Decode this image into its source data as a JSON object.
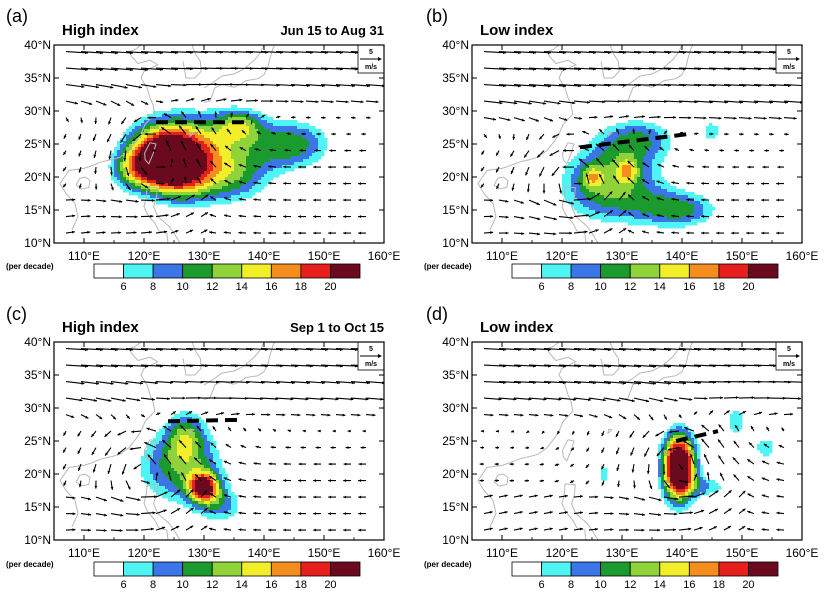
{
  "chart_data": [
    {
      "type": "heatmap",
      "panel_label": "(a)",
      "title": "High index",
      "period": "Jun 15 to Aug 31",
      "colorbar_unit": "(per decade)",
      "colorbar_levels": [
        6,
        8,
        10,
        12,
        14,
        16,
        18,
        20
      ],
      "x_ticks": [
        "110°E",
        "120°E",
        "130°E",
        "140°E",
        "150°E",
        "160°E"
      ],
      "y_ticks": [
        "40°N",
        "35°N",
        "30°N",
        "25°N",
        "20°N",
        "15°N",
        "10°N"
      ],
      "xlim": [
        105,
        160
      ],
      "ylim": [
        10,
        40
      ],
      "reference_vector": {
        "value": "5",
        "unit": "m/s"
      },
      "blobs": [
        {
          "lon": 124,
          "lat": 22,
          "peak": 22,
          "slon": 4.5,
          "slat": 3.5,
          "tilt": -0.5
        },
        {
          "lon": 128,
          "lat": 25,
          "peak": 12,
          "slon": 6,
          "slat": 4,
          "tilt": 0
        },
        {
          "lon": 145,
          "lat": 25,
          "peak": 11,
          "slon": 5,
          "slat": 3,
          "tilt": 0
        },
        {
          "lon": 135,
          "lat": 20,
          "peak": 9,
          "slon": 5,
          "slat": 3.5,
          "tilt": 0
        },
        {
          "lon": 136,
          "lat": 28,
          "peak": 9,
          "slon": 3,
          "slat": 2,
          "tilt": 0
        },
        {
          "lon": 118,
          "lat": 21,
          "peak": 9,
          "slon": 3,
          "slat": 2.5,
          "tilt": 0
        }
      ],
      "ridge_line": [
        [
          122,
          28.3
        ],
        [
          138,
          28.3
        ]
      ],
      "flow": {
        "vortex_lon": 122,
        "vortex_lat": 24,
        "ridge_lat": 28.5,
        "west_flow_lat": 35
      }
    },
    {
      "type": "heatmap",
      "panel_label": "(b)",
      "title": "Low index",
      "period": "",
      "colorbar_unit": "(per decade)",
      "colorbar_levels": [
        6,
        8,
        10,
        12,
        14,
        16,
        18,
        20
      ],
      "x_ticks": [
        "110°E",
        "120°E",
        "130°E",
        "140°E",
        "150°E",
        "160°E"
      ],
      "y_ticks": [
        "40°N",
        "35°N",
        "30°N",
        "25°N",
        "20°N",
        "15°N",
        "10°N"
      ],
      "xlim": [
        105,
        160
      ],
      "ylim": [
        10,
        40
      ],
      "reference_vector": {
        "value": "5",
        "unit": "m/s"
      },
      "blobs": [
        {
          "lon": 128,
          "lat": 19,
          "peak": 13,
          "slon": 6.5,
          "slat": 4.5,
          "tilt": 0
        },
        {
          "lon": 140,
          "lat": 15,
          "peak": 10,
          "slon": 5,
          "slat": 2.2,
          "tilt": 0
        },
        {
          "lon": 131,
          "lat": 21,
          "peak": 6,
          "slon": 1.2,
          "slat": 1.2,
          "tilt": 0
        },
        {
          "lon": 125,
          "lat": 20,
          "peak": 5,
          "slon": 1.2,
          "slat": 1.2,
          "tilt": 0
        },
        {
          "lon": 133,
          "lat": 26,
          "peak": 8,
          "slon": 5,
          "slat": 2.5,
          "tilt": 0
        },
        {
          "lon": 145,
          "lat": 27,
          "peak": 7,
          "slon": 1.5,
          "slat": 1.5,
          "tilt": 0
        }
      ],
      "ridge_line": [
        [
          123,
          24.5
        ],
        [
          141,
          26.5
        ]
      ],
      "flow": {
        "vortex_lon": 122,
        "vortex_lat": 20,
        "ridge_lat": 26,
        "west_flow_lat": 33
      }
    },
    {
      "type": "heatmap",
      "panel_label": "(c)",
      "title": "High index",
      "period": "Sep 1 to Oct 15",
      "colorbar_unit": "(per decade)",
      "colorbar_levels": [
        6,
        8,
        10,
        12,
        14,
        16,
        18,
        20
      ],
      "x_ticks": [
        "110°E",
        "120°E",
        "130°E",
        "140°E",
        "150°E",
        "160°E"
      ],
      "y_ticks": [
        "40°N",
        "35°N",
        "30°N",
        "25°N",
        "20°N",
        "15°N",
        "10°N"
      ],
      "xlim": [
        105,
        160
      ],
      "ylim": [
        10,
        40
      ],
      "reference_vector": {
        "value": "5",
        "unit": "m/s"
      },
      "blobs": [
        {
          "lon": 126,
          "lat": 21,
          "peak": 11,
          "slon": 6,
          "slat": 4.5,
          "tilt": 0
        },
        {
          "lon": 130,
          "lat": 18,
          "peak": 16,
          "slon": 1.8,
          "slat": 1.6,
          "tilt": 0
        },
        {
          "lon": 127,
          "lat": 26,
          "peak": 8,
          "slon": 2.5,
          "slat": 3,
          "tilt": 0
        },
        {
          "lon": 133,
          "lat": 15,
          "peak": 7,
          "slon": 3,
          "slat": 2,
          "tilt": 0
        }
      ],
      "ridge_line": [
        [
          124,
          28
        ],
        [
          136,
          28.2
        ]
      ],
      "flow": {
        "vortex_lon": 120,
        "vortex_lat": 21,
        "ridge_lat": 27,
        "west_flow_lat": 35
      }
    },
    {
      "type": "heatmap",
      "panel_label": "(d)",
      "title": "Low index",
      "period": "",
      "colorbar_unit": "(per decade)",
      "colorbar_levels": [
        6,
        8,
        10,
        12,
        14,
        16,
        18,
        20
      ],
      "x_ticks": [
        "110°E",
        "120°E",
        "130°E",
        "140°E",
        "150°E",
        "160°E"
      ],
      "y_ticks": [
        "40°N",
        "35°N",
        "30°N",
        "25°N",
        "20°N",
        "15°N",
        "10°N"
      ],
      "xlim": [
        105,
        160
      ],
      "ylim": [
        10,
        40
      ],
      "reference_vector": {
        "value": "5",
        "unit": "m/s"
      },
      "blobs": [
        {
          "lon": 139.5,
          "lat": 21,
          "peak": 20,
          "slon": 1.8,
          "slat": 3.3,
          "tilt": 0
        },
        {
          "lon": 139.5,
          "lat": 21,
          "peak": 9,
          "slon": 2.8,
          "slat": 5,
          "tilt": 0
        },
        {
          "lon": 145,
          "lat": 18,
          "peak": 6.5,
          "slon": 2.5,
          "slat": 1.2,
          "tilt": 0
        },
        {
          "lon": 149,
          "lat": 28,
          "peak": 7,
          "slon": 2,
          "slat": 2.5,
          "tilt": 0
        },
        {
          "lon": 154,
          "lat": 24,
          "peak": 7,
          "slon": 2,
          "slat": 2,
          "tilt": 0
        },
        {
          "lon": 127,
          "lat": 20,
          "peak": 7,
          "slon": 1.2,
          "slat": 1.5,
          "tilt": 0
        }
      ],
      "ridge_line": [
        [
          139,
          25
        ],
        [
          146,
          26.5
        ]
      ],
      "flow": {
        "vortex_lon": 140,
        "vortex_lat": 22,
        "ridge_lat": 27,
        "west_flow_lat": 33
      }
    }
  ],
  "colors": {
    "levels": [
      "#ffffff",
      "#4ff4f4",
      "#3a76e6",
      "#1b9a2e",
      "#8fd23a",
      "#f2ef2a",
      "#f58d1e",
      "#e7201e",
      "#6b0a1e"
    ],
    "coast": "#b8b8b8",
    "vector": "#000000"
  }
}
